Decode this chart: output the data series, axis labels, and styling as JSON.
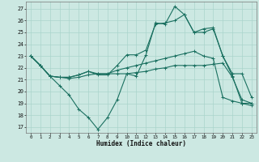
{
  "title": "",
  "xlabel": "Humidex (Indice chaleur)",
  "background_color": "#cce8e2",
  "grid_color": "#aad4cc",
  "line_color": "#1a7060",
  "x_ticks": [
    0,
    1,
    2,
    3,
    4,
    5,
    6,
    7,
    8,
    9,
    10,
    11,
    12,
    13,
    14,
    15,
    16,
    17,
    18,
    19,
    20,
    21,
    22,
    23
  ],
  "y_ticks": [
    17,
    18,
    19,
    20,
    21,
    22,
    23,
    24,
    25,
    26,
    27
  ],
  "ylim": [
    16.5,
    27.6
  ],
  "xlim": [
    -0.5,
    23.5
  ],
  "series": [
    [
      23.0,
      22.2,
      21.3,
      20.5,
      19.7,
      18.5,
      17.8,
      16.8,
      17.8,
      19.3,
      21.5,
      21.3,
      23.1,
      25.8,
      25.7,
      27.2,
      26.5,
      25.0,
      25.0,
      25.3,
      23.0,
      21.3,
      19.0,
      19.0
    ],
    [
      23.0,
      22.2,
      21.3,
      21.2,
      21.2,
      21.4,
      21.7,
      21.4,
      21.4,
      22.2,
      23.1,
      23.1,
      23.5,
      25.7,
      25.8,
      26.0,
      26.5,
      25.0,
      25.3,
      25.4,
      23.0,
      21.5,
      21.5,
      19.5
    ],
    [
      23.0,
      22.2,
      21.3,
      21.2,
      21.2,
      21.4,
      21.7,
      21.5,
      21.5,
      21.8,
      22.0,
      22.2,
      22.4,
      22.6,
      22.8,
      23.0,
      23.2,
      23.4,
      23.0,
      22.8,
      19.5,
      19.2,
      19.0,
      18.8
    ],
    [
      23.0,
      22.2,
      21.3,
      21.2,
      21.1,
      21.2,
      21.4,
      21.5,
      21.5,
      21.5,
      21.5,
      21.6,
      21.7,
      21.9,
      22.0,
      22.2,
      22.2,
      22.2,
      22.2,
      22.3,
      22.4,
      21.2,
      19.3,
      19.0
    ]
  ]
}
